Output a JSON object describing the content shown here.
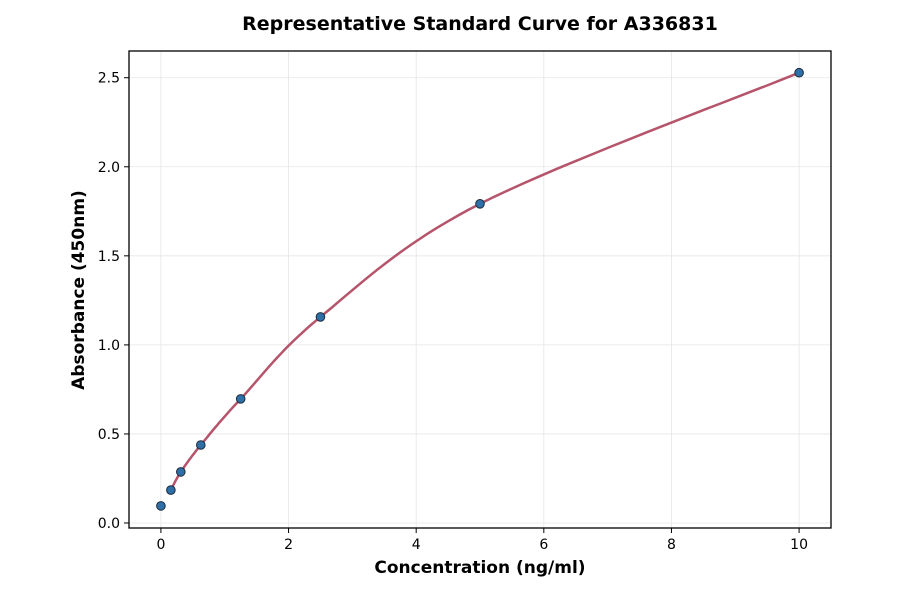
{
  "chart_data": {
    "type": "scatter",
    "title": "Representative Standard Curve for A336831",
    "xlabel": "Concentration (ng/ml)",
    "ylabel": "Absorbance (450nm)",
    "xlim": [
      -0.5,
      10.5
    ],
    "ylim": [
      -0.028,
      2.65
    ],
    "xticks": [
      0,
      2,
      4,
      6,
      8,
      10
    ],
    "xtick_labels": [
      "0",
      "2",
      "4",
      "6",
      "8",
      "10"
    ],
    "yticks": [
      0.0,
      0.5,
      1.0,
      1.5,
      2.0,
      2.5
    ],
    "ytick_labels": [
      "0.0",
      "0.5",
      "1.0",
      "1.5",
      "2.0",
      "2.5"
    ],
    "grid": true,
    "points": {
      "x": [
        0,
        0.156,
        0.312,
        0.625,
        1.25,
        2.5,
        5,
        10
      ],
      "y": [
        0.096,
        0.185,
        0.287,
        0.438,
        0.697,
        1.157,
        1.792,
        2.528
      ]
    },
    "curve_start_x": 0.156,
    "colors": {
      "points": "#2f6fa8",
      "point_edge": "#1a2a3a",
      "curve": "#b5546a",
      "grid": "#e6e6e6"
    }
  }
}
